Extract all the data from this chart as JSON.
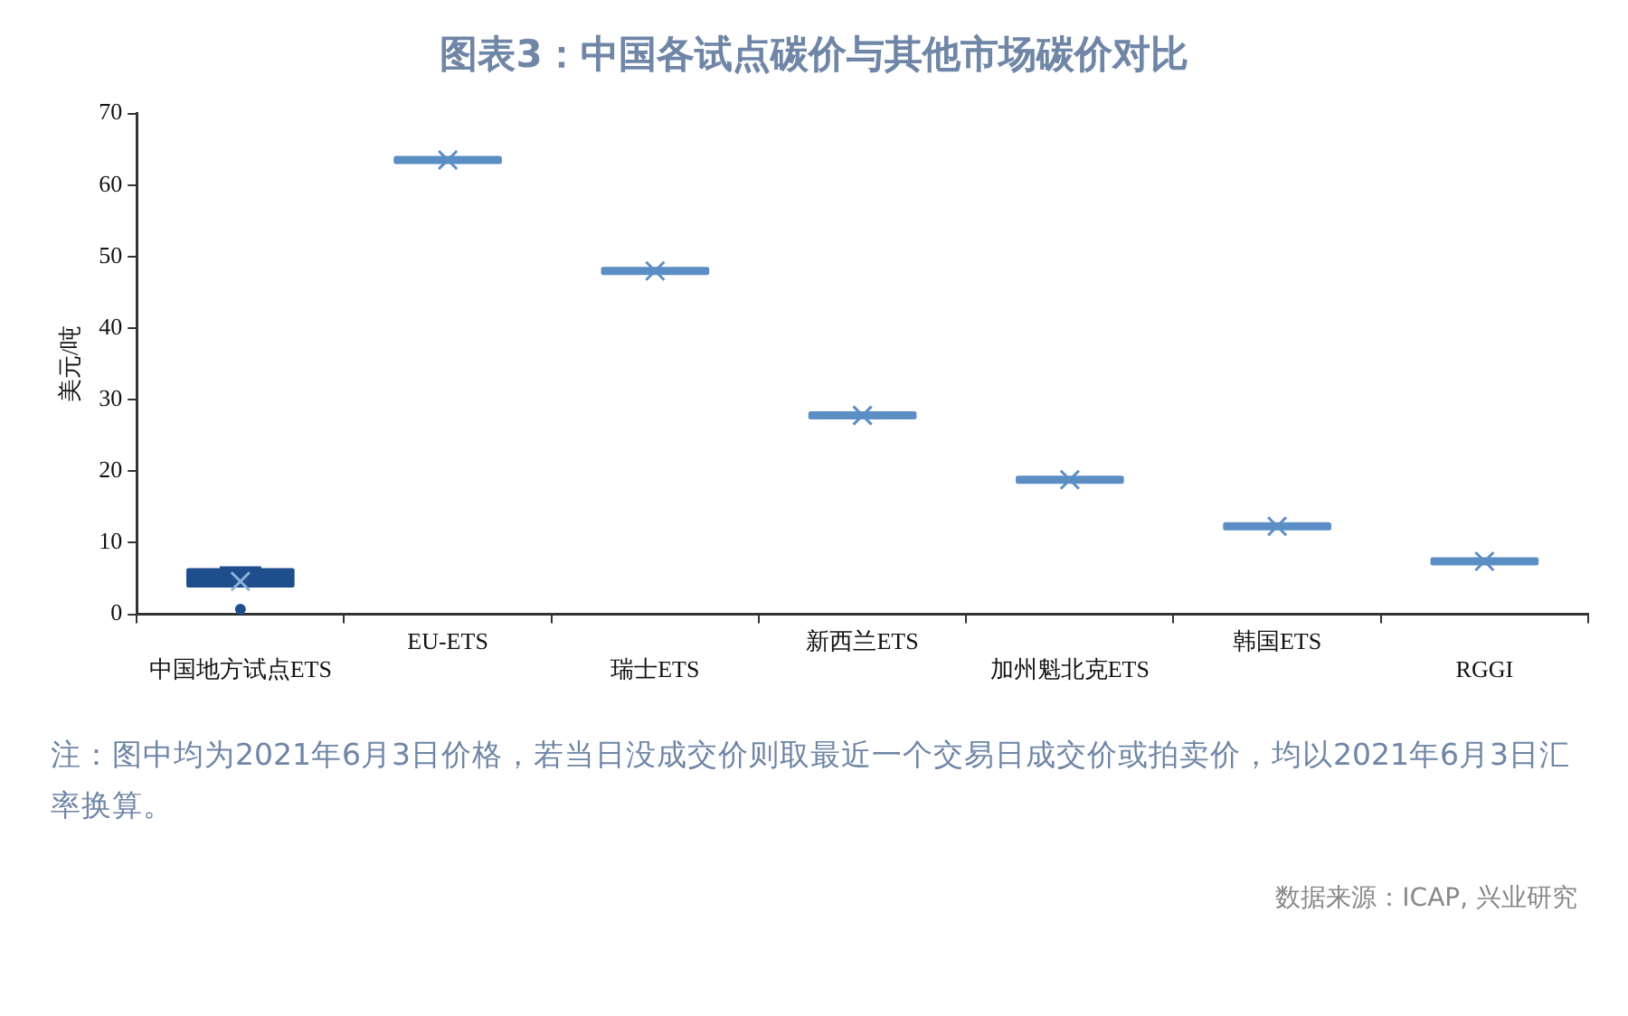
{
  "chart_data": {
    "type": "box",
    "title": "图表3：中国各试点碳价与其他市场碳价对比",
    "ylabel": "美元/吨",
    "categories": [
      "中国地方试点ETS",
      "EU-ETS",
      "瑞士ETS",
      "新西兰ETS",
      "加州魁北克ETS",
      "韩国ETS",
      "RGGI"
    ],
    "boxes": [
      {
        "low": 4.3,
        "q1": 4.3,
        "median": 5,
        "q3": 5.9,
        "high": 6.4,
        "mean": 4.6,
        "outliers": [
          0.7
        ]
      },
      {
        "low": 63.5,
        "q1": 63.5,
        "median": 63.5,
        "q3": 63.5,
        "high": 63.5,
        "mean": 63.5
      },
      {
        "low": 48,
        "q1": 48,
        "median": 48,
        "q3": 48,
        "high": 48,
        "mean": 48
      },
      {
        "low": 27.8,
        "q1": 27.8,
        "median": 27.8,
        "q3": 27.8,
        "high": 27.8,
        "mean": 27.8
      },
      {
        "low": 18.8,
        "q1": 18.8,
        "median": 18.8,
        "q3": 18.8,
        "high": 18.8,
        "mean": 18.8
      },
      {
        "low": 12.3,
        "q1": 12.3,
        "median": 12.3,
        "q3": 12.3,
        "high": 12.3,
        "mean": 12.3
      },
      {
        "low": 7.4,
        "q1": 7.4,
        "median": 7.4,
        "q3": 7.4,
        "high": 7.4,
        "mean": 7.4
      }
    ],
    "colors": [
      "#1f4e8c",
      "#5b8ec4",
      "#5b8ec4",
      "#5b8ec4",
      "#5b8ec4",
      "#5b8ec4",
      "#5b8ec4"
    ],
    "marker": "cross",
    "ylim": [
      0,
      70
    ],
    "yticks": [
      0,
      10,
      20,
      30,
      40,
      50,
      60,
      70
    ],
    "grid": false,
    "legend": false,
    "annotations": [
      "注：图中均为2021年6月3日价格，若当日没成交价则取最近一个交易日成交价或拍卖价，均以2021年6月3日汇率换算。",
      "数据来源：ICAP, 兴业研究"
    ]
  }
}
